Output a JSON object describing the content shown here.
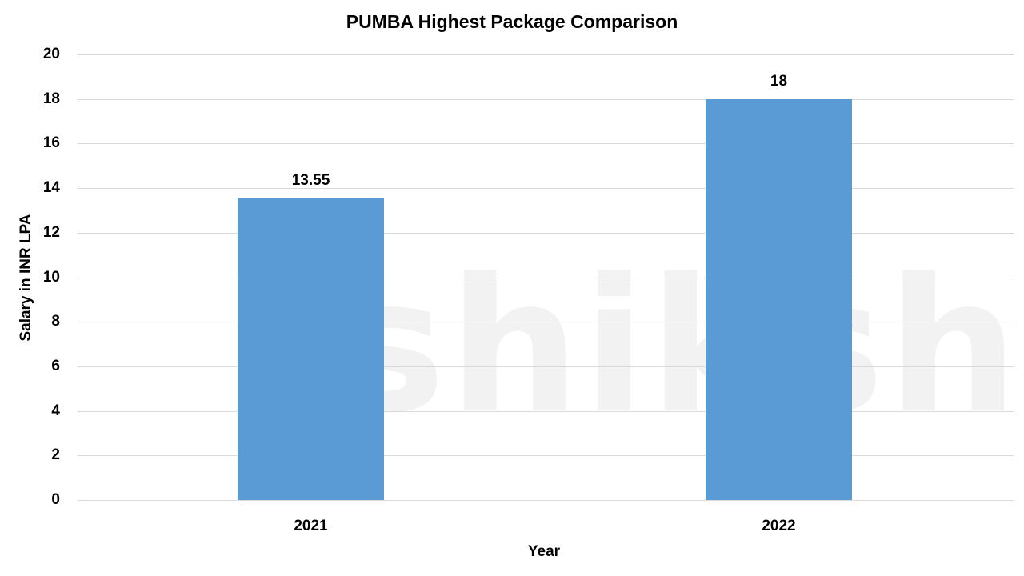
{
  "chart_data": {
    "type": "bar",
    "title": "PUMBA Highest Package Comparison",
    "xlabel": "Year",
    "ylabel": "Salary in INR LPA",
    "categories": [
      "2021",
      "2022"
    ],
    "values": [
      13.55,
      18
    ],
    "data_labels": [
      "13.55",
      "18"
    ],
    "ylim": [
      0,
      20
    ],
    "yticks": [
      "0",
      "2",
      "4",
      "6",
      "8",
      "10",
      "12",
      "14",
      "16",
      "18",
      "20"
    ],
    "grid": true,
    "legend": "none",
    "bar_color": "#5b9bd5"
  },
  "watermark": "shiksha"
}
